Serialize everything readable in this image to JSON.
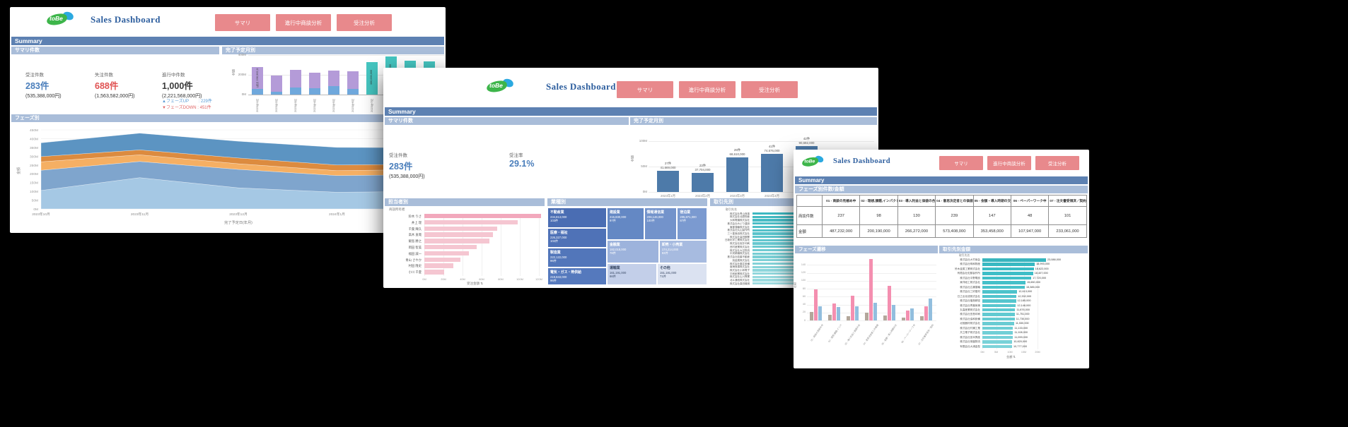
{
  "background": "#000000",
  "accent_colors": {
    "summary_bar": "#5d81b2",
    "section_bar": "#a9bdd9",
    "nav_button": "#e8898c",
    "title_navy": "#2d5e9e",
    "teal": "#45c5c0",
    "purple": "#b49bd8",
    "bar_blue": "#4d7aa9",
    "pink": "#f2a8bc",
    "stat_blue": "#4a7ebb",
    "stat_red": "#e05252"
  },
  "windows": [
    {
      "logo_text": "toBe",
      "title": "Sales Dashboard",
      "nav": [
        "サマリ",
        "進行中商談分析",
        "受注分析"
      ],
      "summary_label": "Summary",
      "section_counts": "サマリ件数",
      "section_monthly": "完了予定月別",
      "section_phase": "フェーズ別",
      "stats": [
        {
          "label": "受注件数",
          "value": "283件",
          "sub": "(535,388,000円)"
        },
        {
          "label": "失注件数",
          "value": "688件",
          "sub": "(1,563,582,000円)"
        },
        {
          "label": "進行中件数",
          "value": "1,000件",
          "sub": "(2,221,568,000円)"
        }
      ],
      "phase_up": "▲フェーズUP　　 : 229件",
      "phase_down": "▼フェーズDOWN : 451件",
      "charts": {
        "monthly": {
          "type": "bar",
          "stacked": true,
          "ylabel": "金額",
          "yticks_m": [
            0,
            200,
            400
          ],
          "categories": [
            "2023年1月",
            "2023年2月",
            "2023年3月",
            "2023年4月",
            "2023年5月",
            "2023年6月",
            "2023年7月",
            "2023年8月",
            "2023年9月",
            "2023年10月"
          ],
          "series": [
            {
              "name": "受注",
              "color": "#6fa8dc",
              "values_m": [
                60,
                30,
                75,
                65,
                85,
                60,
                0,
                0,
                0,
                0
              ]
            },
            {
              "name": "失注",
              "color": "#b49bd8",
              "values_m": [
                220,
                165,
                175,
                160,
                160,
                175,
                0,
                0,
                0,
                0
              ]
            },
            {
              "name": "進行中",
              "color": "#45c5c0",
              "values_m": [
                0,
                0,
                0,
                0,
                0,
                0,
                330,
                386,
                342,
                334
              ]
            }
          ],
          "bar_annotation": "失注 236,962,000"
        },
        "phase_area": {
          "type": "area",
          "ylabel": "金額",
          "xlabel": "完了予定日(年月)",
          "ymax_m": 450,
          "ytick_step_m": 50,
          "x": [
            "2023年10月",
            "2023年11月",
            "2023年12月",
            "2024年1月",
            "2024年2月"
          ],
          "layers": [
            {
              "color": "#a5c8e4",
              "values_m": [
                105,
                178,
                120,
                95,
                100
              ]
            },
            {
              "color": "#7fa5cd",
              "values_m": [
                115,
                92,
                105,
                95,
                95
              ]
            },
            {
              "color": "#f5af63",
              "values_m": [
                48,
                38,
                32,
                28,
                30
              ]
            },
            {
              "color": "#dc8b3f",
              "values_m": [
                30,
                28,
                33,
                32,
                30
              ]
            },
            {
              "color": "#5c94c2",
              "values_m": [
                78,
                95,
                95,
                100,
                93
              ]
            }
          ]
        }
      }
    },
    {
      "logo_text": "toBe",
      "title": "Sales Dashboard",
      "nav": [
        "サマリ",
        "進行中商談分析",
        "受注分析"
      ],
      "summary_label": "Summary",
      "section_counts": "サマリ件数",
      "section_monthly": "完了予定月別",
      "section_owner": "担当者別",
      "section_industry": "業種別",
      "section_client": "取引先別",
      "stats": [
        {
          "label": "受注件数",
          "value": "283件",
          "sub": "(535,388,000円)"
        },
        {
          "label": "受注率",
          "value": "29.1%",
          "sub": ""
        }
      ],
      "charts": {
        "monthly": {
          "type": "bar",
          "ylabel": "金額",
          "yticks_m": [
            0,
            50,
            100
          ],
          "color": "#4d7aa9",
          "bars": [
            {
              "month": "2023年1月",
              "count": "27件",
              "amount": "41,669,000",
              "value_m": 41.7
            },
            {
              "month": "2023年2月",
              "count": "23件",
              "amount": "37,704,000",
              "value_m": 37.7
            },
            {
              "month": "2023年3月",
              "count": "29件",
              "amount": "68,610,000",
              "value_m": 68.6
            },
            {
              "month": "2023年4月",
              "count": "41件",
              "amount": "74,576,000",
              "value_m": 74.6
            },
            {
              "month": "2023年5月",
              "count": "42件",
              "amount": "90,692,000",
              "value_m": 90.7
            },
            {
              "month": "2023年6月",
              "count": "17件",
              "amount": "54,324,000",
              "value_m": 54.3
            }
          ]
        },
        "owners": {
          "type": "hbar",
          "axis_title": "商談所有者",
          "xlabel": "受注金額",
          "sort_icon": "⇅",
          "xticks_m": [
            0,
            20,
            40,
            60,
            80,
            100,
            120
          ],
          "rows": [
            {
              "name": "鈴木 りさ",
              "value_m": 122
            },
            {
              "name": "井上 理",
              "value_m": 98
            },
            {
              "name": "千葉 輝久",
              "value_m": 76
            },
            {
              "name": "高木 直哉",
              "value_m": 72
            },
            {
              "name": "飯島 勝之",
              "value_m": 68
            },
            {
              "name": "岡田 智美",
              "value_m": 55
            },
            {
              "name": "福田 誠一",
              "value_m": 47
            },
            {
              "name": "青山 さやか",
              "value_m": 38
            },
            {
              "name": "村田 隆史",
              "value_m": 30
            },
            {
              "name": "小川 千夏",
              "value_m": 21
            }
          ]
        },
        "industry": {
          "type": "treemap",
          "left_column": [
            {
              "name": "不動産業",
              "amount": "234,813,000",
              "count": "103件",
              "color": "#4a6db3",
              "h": 0.26
            },
            {
              "name": "医療・福祉",
              "amount": "226,327,000",
              "count": "102件",
              "color": "#4f72b7",
              "h": 0.26
            },
            {
              "name": "製造業",
              "amount": "222,122,000",
              "count": "96件",
              "color": "#5276ba",
              "h": 0.25
            },
            {
              "name": "電気・ガス・熱供給",
              "amount": "219,843,000",
              "count": "96件",
              "color": "#5579bd",
              "h": 0.23
            }
          ],
          "rows": [
            {
              "height": 0.42,
              "cells": [
                {
                  "name": "建設業",
                  "amount": "215,830,000",
                  "count": "97件",
                  "color": "#6488c4",
                  "w": 0.37
                },
                {
                  "name": "情報通信業",
                  "amount": "206,146,000",
                  "count": "100件",
                  "color": "#7393cb",
                  "w": 0.33
                },
                {
                  "name": "宿泊業",
                  "amount": "205,871,000",
                  "count": "87件",
                  "color": "#7b9ad0",
                  "w": 0.3
                }
              ]
            },
            {
              "height": 0.3,
              "cells": [
                {
                  "name": "金融業",
                  "amount": "182,018,000",
                  "count": "78件",
                  "color": "#9db3dc",
                  "w": 0.52
                },
                {
                  "name": "卸売・小売業",
                  "amount": "174,214,000",
                  "count": "83件",
                  "color": "#a7bbe0",
                  "w": 0.48
                }
              ]
            },
            {
              "height": 0.28,
              "cells": [
                {
                  "name": "運輸業",
                  "amount": "161,191,000",
                  "count": "66件",
                  "color": "#c3cfe9",
                  "w": 0.5,
                  "dark_text": true
                },
                {
                  "name": "その他",
                  "amount": "151,181,000",
                  "count": "71件",
                  "color": "#dbe2f1",
                  "w": 0.5,
                  "dark_text": true
                }
              ]
            }
          ]
        },
        "clients": {
          "type": "hbar",
          "axis_title": "取引先名",
          "rows": [
            {
              "name": "株式会社青山商事"
            },
            {
              "name": "株式会社北原物産"
            },
            {
              "name": "大和電機株式会社"
            },
            {
              "name": "株式会社みどり建設"
            },
            {
              "name": "東都運輸株式会社"
            },
            {
              "name": "株式会社丸山製作所"
            },
            {
              "name": "三ツ星食品株式会社"
            },
            {
              "name": "株式会社高田鋼業"
            },
            {
              "name": "日新化学工業株式会社"
            },
            {
              "name": "株式会社桜井印刷"
            },
            {
              "name": "西村産業株式会社"
            },
            {
              "name": "株式会社大空物流"
            },
            {
              "name": "中央精機株式会社"
            },
            {
              "name": "株式会社若葉不動産"
            },
            {
              "name": "旭金属株式会社"
            },
            {
              "name": "株式会社藤井設備"
            },
            {
              "name": "南海商事株式会社"
            },
            {
              "name": "株式会社小林電子"
            },
            {
              "name": "平和紙業株式会社"
            },
            {
              "name": "株式会社山川興業"
            },
            {
              "name": "北斗通信株式会社"
            },
            {
              "name": "株式会社森田機械"
            }
          ]
        }
      }
    },
    {
      "logo_text": "toBe",
      "title": "Sales Dashboard",
      "nav": [
        "サマリ",
        "進行中商談分析",
        "受注分析"
      ],
      "summary_label": "Summary",
      "section_table": "フェーズ別件数/金額",
      "section_transition": "フェーズ遷移",
      "section_client_amount": "取引先別金額",
      "table": {
        "phases": [
          "01 - 商談の見極め中",
          "02 - 理想,課題,インパクトの..",
          "03 - 導入利益と価値の合意中",
          "04 - 意思決定者との価値の合..",
          "05 - 金額・導入時期の交渉中",
          "06 - ペーパーワーク中",
          "07 - 注文書受領済／契約書待.."
        ],
        "rows": [
          {
            "label": "商談件数",
            "values": [
              "237",
              "98",
              "130",
              "239",
              "147",
              "48",
              "101"
            ]
          },
          {
            "label": "金額",
            "values": [
              "487,232,000",
              "200,190,000",
              "266,272,000",
              "573,408,000",
              "353,458,000",
              "107,947,000",
              "233,061,000"
            ]
          }
        ]
      },
      "charts": {
        "transition": {
          "type": "grouped-bar",
          "ylabel": "件数",
          "ymax": 160,
          "ytick_step": 20,
          "series_colors": [
            "#b3a79b",
            "#f48fb0",
            "#92bede"
          ],
          "groups": [
            {
              "label": "01 - 商談の見極め中",
              "values": [
                22,
                78,
                35
              ]
            },
            {
              "label": "02 - 理想,課題,インパクトの..",
              "values": [
                15,
                42,
                33
              ]
            },
            {
              "label": "03 - 導入利益と価値の合意中",
              "values": [
                10,
                62,
                35
              ]
            },
            {
              "label": "04 - 意思決定者との価値の合..",
              "values": [
                20,
                155,
                45
              ]
            },
            {
              "label": "05 - 金額・導入時期の交渉中",
              "values": [
                12,
                88,
                40
              ]
            },
            {
              "label": "06 - ペーパーワーク中",
              "values": [
                8,
                25,
                30
              ]
            },
            {
              "label": "07 - 注文書受領済／契約書待..",
              "values": [
                10,
                35,
                55
              ]
            }
          ]
        },
        "client_amount": {
          "type": "hbar",
          "axis_title": "取引先名",
          "xlabel": "金額",
          "sort_icon": "⇅",
          "xticks_m": [
            0,
            5,
            10,
            15,
            20
          ],
          "rows": [
            {
              "name": "株式会社大竹商会",
              "label": "23,088,000",
              "value_m": 23.088
            },
            {
              "name": "株式会社明和物産",
              "label": "18,993,000",
              "value_m": 18.993
            },
            {
              "name": "鈴木金属工業株式会社",
              "label": "18,622,000",
              "value_m": 18.622
            },
            {
              "name": "有限会社佐藤製作所",
              "label": "18,407,000",
              "value_m": 18.407
            },
            {
              "name": "株式会社中野電設",
              "label": "17,720,000",
              "value_m": 17.72
            },
            {
              "name": "東洋紙工株式会社",
              "label": "15,650,000",
              "value_m": 15.65
            },
            {
              "name": "株式会社広瀬運輸",
              "label": "15,385,000",
              "value_m": 15.385
            },
            {
              "name": "株式会社三好建材",
              "label": "12,613,000",
              "value_m": 12.613
            },
            {
              "name": "日之出化成株式会社",
              "label": "12,332,000",
              "value_m": 12.332
            },
            {
              "name": "株式会社福島精密",
              "label": "12,185,000",
              "value_m": 12.185
            },
            {
              "name": "株式会社青葉商事",
              "label": "12,148,000",
              "value_m": 12.148
            },
            {
              "name": "丸高産業株式会社",
              "label": "11,876,000",
              "value_m": 11.876
            },
            {
              "name": "株式会社田島印刷",
              "label": "11,751,000",
              "value_m": 11.751
            },
            {
              "name": "株式会社協和設備",
              "label": "11,730,000",
              "value_m": 11.73
            },
            {
              "name": "北陸器材株式会社",
              "label": "11,530,000",
              "value_m": 11.53
            },
            {
              "name": "株式会社村瀬工業",
              "label": "11,133,000",
              "value_m": 11.133
            },
            {
              "name": "共立電子株式会社",
              "label": "11,108,000",
              "value_m": 11.108
            },
            {
              "name": "株式会社宮本興産",
              "label": "11,099,000",
              "value_m": 11.099
            },
            {
              "name": "株式会社常盤物流",
              "label": "10,820,000",
              "value_m": 10.82
            },
            {
              "name": "有限会社大浦金型",
              "label": "10,777,000",
              "value_m": 10.777
            }
          ]
        }
      }
    }
  ]
}
